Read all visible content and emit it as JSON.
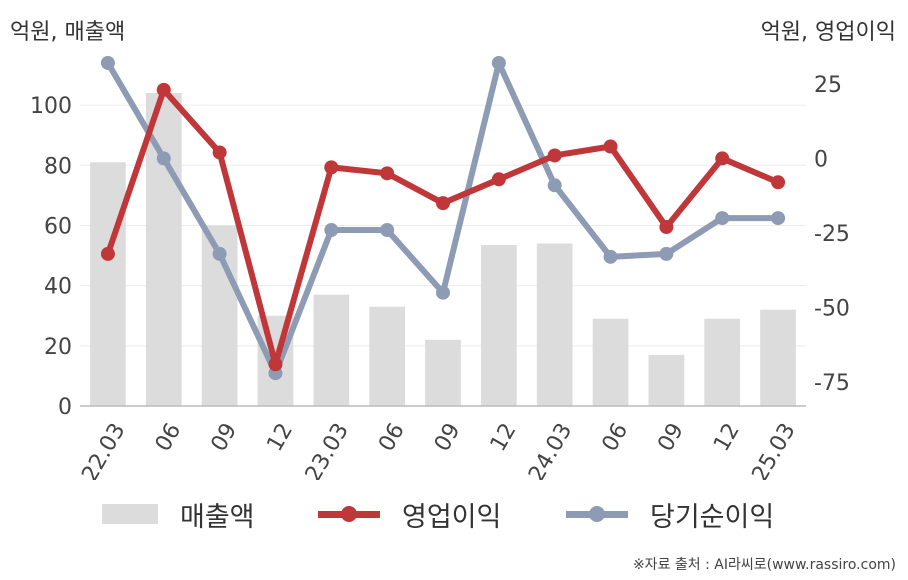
{
  "chart_data": {
    "type": "bar+line",
    "categories": [
      "22.03",
      "06",
      "09",
      "12",
      "23.03",
      "06",
      "09",
      "12",
      "24.03",
      "06",
      "09",
      "12",
      "25.03"
    ],
    "left_axis": {
      "unit_label": "억원, 매출액",
      "ylim": [
        0,
        115
      ],
      "ticks": [
        0,
        20,
        40,
        60,
        80,
        100
      ]
    },
    "right_axis": {
      "unit_label": "억원, 영업이익",
      "ylim": [
        -83,
        33
      ],
      "ticks": [
        25,
        0,
        -25,
        -50,
        -75
      ]
    },
    "series": [
      {
        "name": "매출액",
        "type": "bar",
        "axis": "left",
        "color": "#dcdcdc",
        "values": [
          81,
          104,
          60,
          30,
          37,
          33,
          22,
          53.5,
          54,
          29,
          17,
          29,
          32
        ]
      },
      {
        "name": "영업이익",
        "type": "line",
        "axis": "right",
        "color": "#c0373a",
        "values": [
          -32,
          23,
          2,
          -69,
          -3,
          -5,
          -15,
          -7,
          1,
          4,
          -23,
          0,
          -8
        ]
      },
      {
        "name": "당기순이익",
        "type": "line",
        "axis": "right",
        "color": "#8e9bb5",
        "values": [
          32,
          0,
          -32,
          -72,
          -24,
          -24,
          -45,
          32,
          -9,
          -33,
          -32,
          -20,
          -20
        ]
      }
    ],
    "grid": true,
    "legend_position": "bottom"
  },
  "source": "※자료 출처 : AI라씨로(www.rassiro.com)"
}
